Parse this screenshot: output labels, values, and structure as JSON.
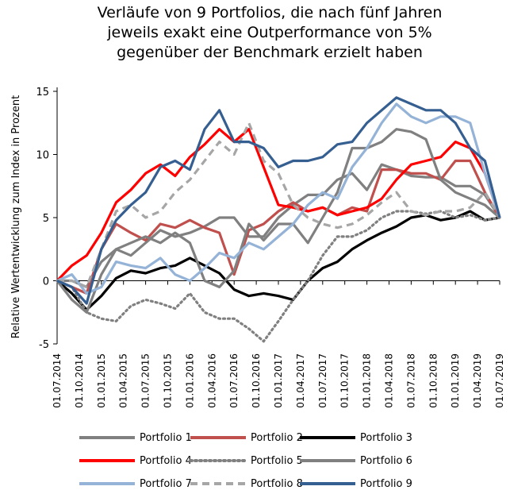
{
  "chart_data": {
    "type": "line",
    "title_lines": [
      "Verläufe von 9 Portfolios, die nach fünf Jahren",
      "jeweils exakt eine Outperformance von 5%",
      "gegenüber der Benchmark erzielt haben"
    ],
    "ylabel": "Relative Wertentwicklung zum Index in Prozent",
    "xlabel": "",
    "ylim": [
      -5,
      15
    ],
    "yticks": [
      -5,
      0,
      5,
      10,
      15
    ],
    "x_range": [
      0,
      60
    ],
    "x_tick_labels": [
      "01.07.2014",
      "01.10.2014",
      "01.01.2015",
      "01.04.2015",
      "01.07.2015",
      "01.10.2015",
      "01.01.2016",
      "01.04.2016",
      "01.07.2016",
      "01.10.2016",
      "01.01.2017",
      "01.04.2017",
      "01.07.2017",
      "01.10.2017",
      "01.01.2018",
      "01.04.2018",
      "01.07.2018",
      "01.10.2018",
      "01.01.2019",
      "01.04.2019",
      "01.07.2019"
    ],
    "x_tick_months": [
      0,
      3,
      6,
      9,
      12,
      15,
      18,
      21,
      24,
      27,
      30,
      33,
      36,
      39,
      42,
      45,
      48,
      51,
      54,
      57,
      60
    ],
    "grid": false,
    "legend_position": "bottom",
    "series": [
      {
        "name": "Portfolio 1",
        "color": "#808080",
        "dash": "solid",
        "x": [
          0,
          2,
          4,
          6,
          8,
          10,
          12,
          14,
          16,
          18,
          20,
          22,
          24,
          26,
          28,
          30,
          32,
          34,
          36,
          38,
          40,
          42,
          44,
          46,
          48,
          50,
          52,
          54,
          56,
          58,
          60
        ],
        "y": [
          0,
          0,
          -0.5,
          1.5,
          2.5,
          2,
          3,
          4,
          3.5,
          3.8,
          4.3,
          5,
          5,
          3.5,
          3.5,
          5,
          6,
          6.8,
          6.8,
          8,
          8.5,
          7.2,
          9.2,
          8.8,
          8.3,
          8.2,
          8.2,
          7.5,
          7.5,
          6.8,
          5
        ]
      },
      {
        "name": "Portfolio 2",
        "color": "#c0504d",
        "dash": "solid",
        "x": [
          0,
          2,
          4,
          6,
          8,
          10,
          12,
          14,
          16,
          18,
          20,
          22,
          24,
          26,
          28,
          30,
          32,
          34,
          36,
          38,
          40,
          42,
          44,
          46,
          48,
          50,
          52,
          54,
          56,
          58,
          60
        ],
        "y": [
          0,
          -0.5,
          -1,
          2.5,
          4.5,
          3.8,
          3.2,
          4.5,
          4.2,
          4.8,
          4.2,
          3.8,
          0.5,
          4,
          4.5,
          5.5,
          6.2,
          5.5,
          5.8,
          5.2,
          5.8,
          5.5,
          8.8,
          8.8,
          8.5,
          8.5,
          8,
          9.5,
          9.5,
          7,
          5
        ]
      },
      {
        "name": "Portfolio 3",
        "color": "#000000",
        "dash": "solid",
        "x": [
          0,
          2,
          4,
          6,
          8,
          10,
          12,
          14,
          16,
          18,
          20,
          22,
          24,
          26,
          28,
          30,
          32,
          34,
          36,
          38,
          40,
          42,
          44,
          46,
          48,
          50,
          52,
          54,
          56,
          58,
          60
        ],
        "y": [
          0,
          -1,
          -2.3,
          -1.2,
          0.2,
          0.8,
          0.6,
          1,
          1.2,
          1.8,
          1.2,
          0.6,
          -0.7,
          -1.2,
          -1,
          -1.2,
          -1.5,
          0,
          1,
          1.5,
          2.5,
          3.2,
          3.8,
          4.3,
          5,
          5.2,
          4.8,
          5,
          5.5,
          4.8,
          5
        ]
      },
      {
        "name": "Portfolio 4",
        "color": "#ff0000",
        "dash": "solid",
        "x": [
          0,
          2,
          4,
          6,
          8,
          10,
          12,
          14,
          16,
          18,
          20,
          22,
          24,
          26,
          28,
          30,
          32,
          34,
          36,
          38,
          40,
          42,
          44,
          46,
          48,
          50,
          52,
          54,
          56,
          58,
          60
        ],
        "y": [
          0,
          1.2,
          2,
          3.8,
          6.2,
          7.2,
          8.5,
          9.2,
          8.3,
          9.8,
          10.8,
          12,
          11,
          12,
          9,
          6,
          5.8,
          5.5,
          5.8,
          5.2,
          5.5,
          5.8,
          6.5,
          8,
          9.2,
          9.5,
          9.8,
          11,
          10.5,
          8.5,
          5
        ]
      },
      {
        "name": "Portfolio 5",
        "color": "#808080",
        "dash": "dot",
        "x": [
          0,
          2,
          4,
          6,
          8,
          10,
          12,
          14,
          16,
          18,
          20,
          22,
          24,
          26,
          28,
          30,
          32,
          34,
          36,
          38,
          40,
          42,
          44,
          46,
          48,
          50,
          52,
          54,
          56,
          58,
          60
        ],
        "y": [
          0,
          -0.5,
          -2.5,
          -3,
          -3.2,
          -2,
          -1.5,
          -1.8,
          -2.2,
          -1,
          -2.5,
          -3,
          -3,
          -3.8,
          -4.8,
          -3.2,
          -1.5,
          0,
          2,
          3.5,
          3.5,
          4,
          5,
          5.5,
          5.5,
          5.3,
          5.5,
          5,
          5.2,
          4.8,
          5
        ]
      },
      {
        "name": "Portfolio 6",
        "color": "#808080",
        "dash": "solid",
        "x": [
          0,
          2,
          4,
          6,
          8,
          10,
          12,
          14,
          16,
          18,
          20,
          22,
          24,
          26,
          28,
          30,
          32,
          34,
          36,
          38,
          40,
          42,
          44,
          46,
          48,
          50,
          52,
          54,
          56,
          58,
          60
        ],
        "y": [
          0,
          -1.5,
          -2.5,
          0.5,
          2.5,
          3,
          3.5,
          3,
          3.8,
          3,
          0,
          -0.5,
          0.8,
          4.5,
          3.2,
          4.5,
          4.5,
          3,
          5,
          7,
          10.5,
          10.5,
          11,
          12,
          11.8,
          11.2,
          8,
          7,
          6.5,
          6,
          5
        ]
      },
      {
        "name": "Portfolio 7",
        "color": "#95b3d7",
        "dash": "solid",
        "x": [
          0,
          2,
          4,
          6,
          8,
          10,
          12,
          14,
          16,
          18,
          20,
          22,
          24,
          26,
          28,
          30,
          32,
          34,
          36,
          38,
          40,
          42,
          44,
          46,
          48,
          50,
          52,
          54,
          56,
          58,
          60
        ],
        "y": [
          0,
          0.5,
          -1,
          -0.5,
          1.5,
          1.2,
          1,
          1.8,
          0.5,
          0,
          1,
          2.2,
          1.8,
          3,
          2.5,
          3.5,
          4.5,
          6,
          7,
          6.5,
          9,
          10.5,
          12.5,
          14,
          13,
          12.5,
          13,
          13,
          12.5,
          8.5,
          5
        ]
      },
      {
        "name": "Portfolio 8",
        "color": "#a6a6a6",
        "dash": "dash",
        "x": [
          0,
          2,
          4,
          6,
          8,
          10,
          12,
          14,
          16,
          18,
          20,
          22,
          24,
          26,
          28,
          30,
          32,
          34,
          36,
          38,
          40,
          42,
          44,
          46,
          48,
          50,
          52,
          54,
          56,
          58,
          60
        ],
        "y": [
          0,
          0,
          -0.5,
          2.5,
          5.5,
          6,
          5,
          5.5,
          7,
          8,
          9.5,
          11,
          10,
          12.5,
          9.5,
          8.5,
          6,
          5,
          4.5,
          4.2,
          4.5,
          5.2,
          6.2,
          7,
          5.5,
          5.2,
          5.5,
          5.5,
          5.8,
          7,
          5
        ]
      },
      {
        "name": "Portfolio 9",
        "color": "#365f91",
        "dash": "solid",
        "x": [
          0,
          2,
          4,
          6,
          8,
          10,
          12,
          14,
          16,
          18,
          20,
          22,
          24,
          26,
          28,
          30,
          32,
          34,
          36,
          38,
          40,
          42,
          44,
          46,
          48,
          50,
          52,
          54,
          56,
          58,
          60
        ],
        "y": [
          0,
          -0.5,
          -1.8,
          2.5,
          4.8,
          6,
          7,
          9,
          9.5,
          8.8,
          12,
          13.5,
          11,
          11,
          10.5,
          9,
          9.5,
          9.5,
          9.8,
          10.8,
          11,
          12.5,
          13.5,
          14.5,
          14,
          13.5,
          13.5,
          12.5,
          10.5,
          9.5,
          5
        ]
      }
    ]
  }
}
